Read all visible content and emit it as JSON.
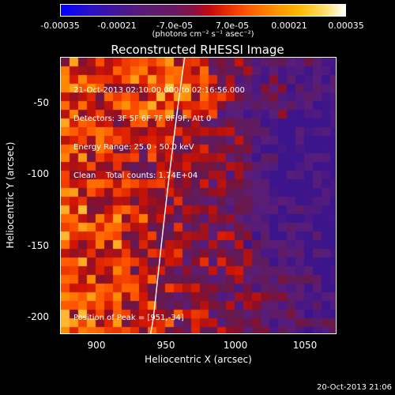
{
  "colorbar": {
    "ticks": [
      "-0.00035",
      "-0.00021",
      "-7.0e-05",
      "7.0e-05",
      "0.00021",
      "0.00035"
    ],
    "units": "(photons cm⁻² s⁻¹ asec⁻²)"
  },
  "plot": {
    "title": "Reconstructed RHESSI Image",
    "xlabel": "Heliocentric X (arcsec)",
    "ylabel": "Heliocentric Y (arcsec)",
    "xticks": [
      "900",
      "950",
      "1000",
      "1050"
    ],
    "yticks": [
      "-50",
      "-100",
      "-150",
      "-200"
    ],
    "info_lines": [
      "21-Oct-2013 02:10:00.000 to 02:16:56.000",
      "Detectors: 3F 5F 6F 7F 8F 9F, Att 0",
      "Energy Range: 25.0 - 50.0 keV",
      "Clean    Total counts: 1.74E+04"
    ],
    "peak_label": "Position of Peak = [951,-34]"
  },
  "footer": {
    "date": "20-Oct-2013 21:06"
  }
}
